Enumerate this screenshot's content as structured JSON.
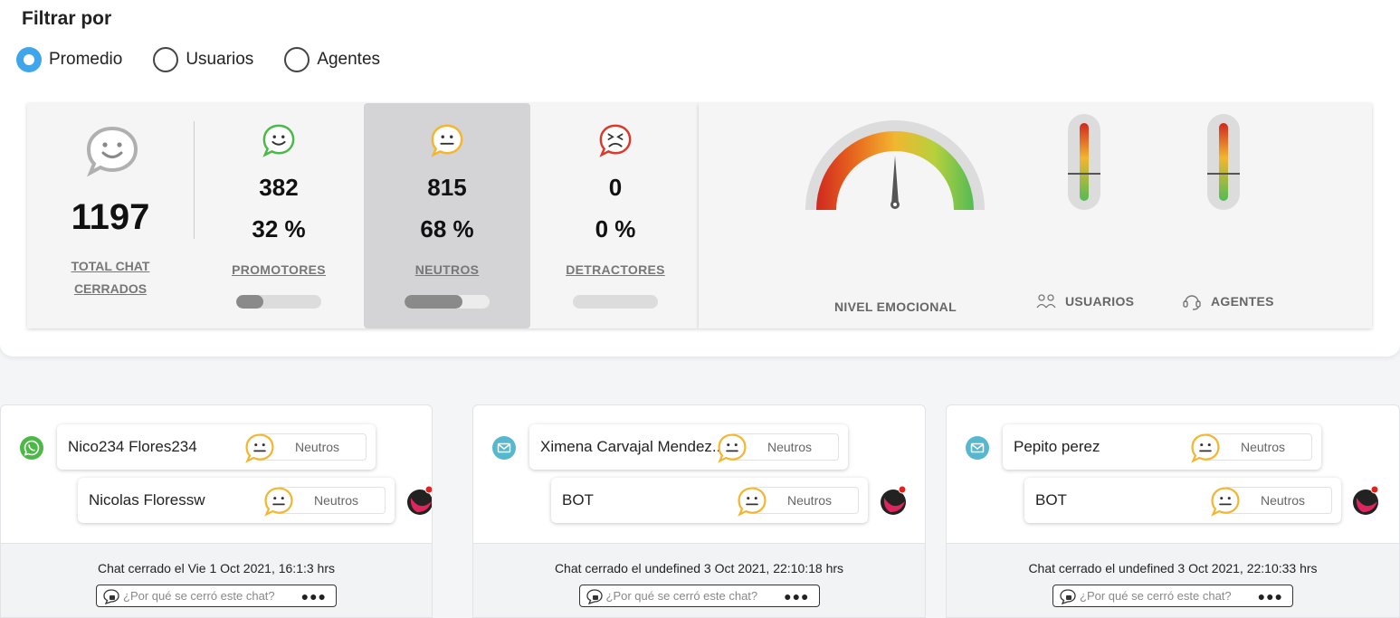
{
  "filter": {
    "title": "Filtrar por",
    "options": [
      {
        "label": "Promedio",
        "checked": true
      },
      {
        "label": "Usuarios",
        "checked": false
      },
      {
        "label": "Agentes",
        "checked": false
      }
    ]
  },
  "stats": {
    "total": {
      "count": "1197",
      "label": "TOTAL CHAT CERRADOS"
    },
    "promotores": {
      "count": "382",
      "pct": "32 %",
      "label": "PROMOTORES",
      "fraction": 0.32,
      "color": "#4cb848"
    },
    "neutros": {
      "count": "815",
      "pct": "68 %",
      "label": "NEUTROS",
      "fraction": 0.68,
      "color": "#f2b630"
    },
    "detractores": {
      "count": "0",
      "pct": "0 %",
      "label": "DETRACTORES",
      "fraction": 0.0,
      "color": "#d93a2b"
    }
  },
  "gauges": {
    "emotional_label": "NIVEL EMOCIONAL",
    "users_label": "USUARIOS",
    "agents_label": "AGENTES"
  },
  "chats": [
    {
      "channel": "whatsapp-icon",
      "user_name": "Nico234 Flores234",
      "user_mood": "Neutros",
      "agent_name": "Nicolas Floressw",
      "agent_mood": "Neutros",
      "closed_text": "Chat cerrado el Vie 1 Oct 2021, 16:1:3 hrs",
      "why_placeholder": "¿Por qué se cerró este chat?"
    },
    {
      "channel": "email-icon",
      "user_name": "Ximena Carvajal Mendez...",
      "user_mood": "Neutros",
      "agent_name": "BOT",
      "agent_mood": "Neutros",
      "closed_text": "Chat cerrado el undefined 3 Oct 2021, 22:10:18 hrs",
      "why_placeholder": "¿Por qué se cerró este chat?"
    },
    {
      "channel": "email-icon",
      "user_name": "Pepito perez",
      "user_mood": "Neutros",
      "agent_name": "BOT",
      "agent_mood": "Neutros",
      "closed_text": "Chat cerrado el undefined 3 Oct 2021, 22:10:33 hrs",
      "why_placeholder": "¿Por qué se cerró este chat?"
    }
  ]
}
